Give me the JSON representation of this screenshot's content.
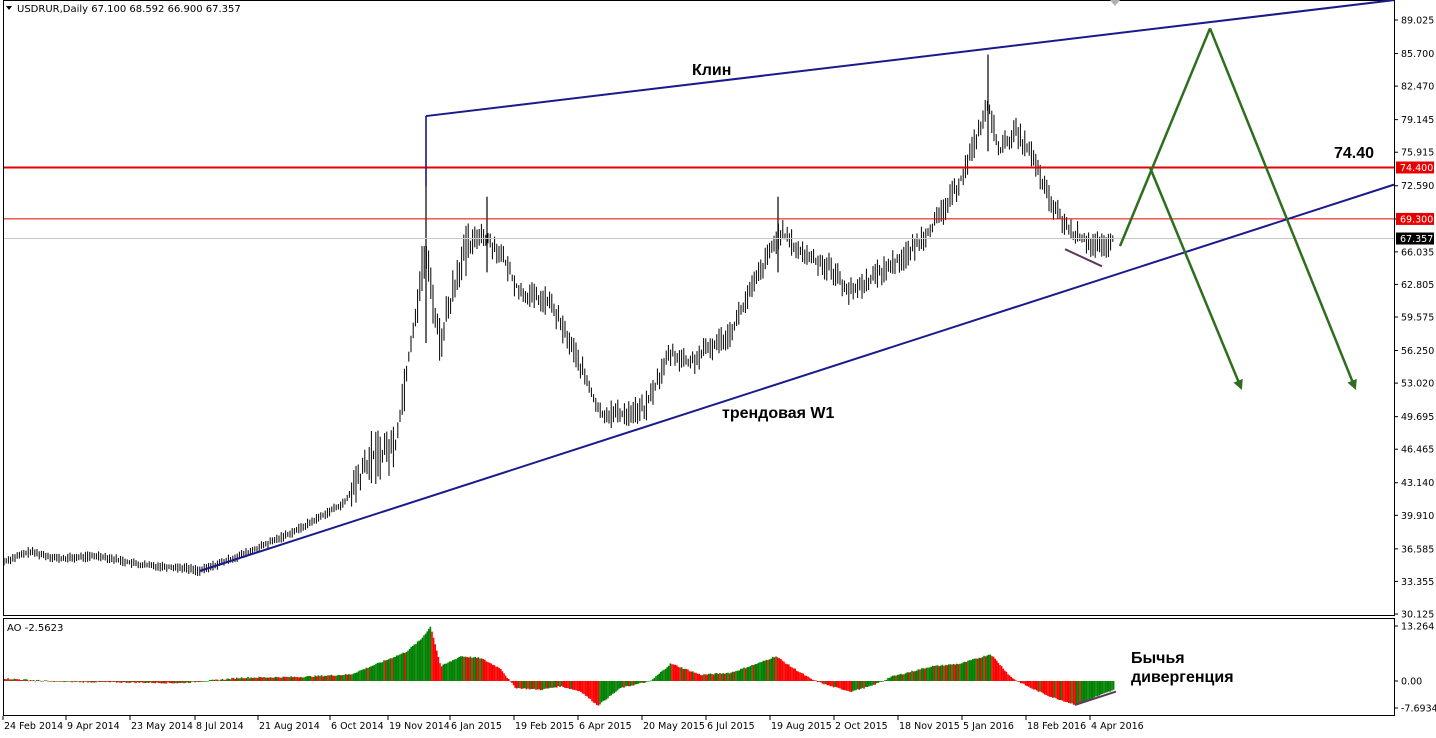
{
  "header": {
    "symbol_line": "USDRUR,Daily  67.100 68.592 66.900 67.357",
    "indicator_line": "AO -2.5623"
  },
  "colors": {
    "background": "#ffffff",
    "border": "#000000",
    "candles": "#000000",
    "trendlines": "#1a1a8c",
    "resistance_main": "#e60000",
    "resistance_minor": "#e60000",
    "current_price_line": "#c8c8c8",
    "projection_arrows": "#2e6e1e",
    "divergence": "#5a3a5a",
    "ao_up": "#008000",
    "ao_down": "#ff0000"
  },
  "annotations": {
    "wedge": "Клин",
    "trendline": "трендовая W1",
    "level": "74.40",
    "divergence_line1": "Бычья",
    "divergence_line2": "дивергенция"
  },
  "chart_data": [
    {
      "type": "candlestick",
      "title": "USDRUR,Daily",
      "ohlc_last": {
        "open": 67.1,
        "high": 68.592,
        "low": 66.9,
        "close": 67.357
      },
      "x_ticks": [
        "24 Feb 2014",
        "9 Apr 2014",
        "23 May 2014",
        "8 Jul 2014",
        "21 Aug 2014",
        "6 Oct 2014",
        "19 Nov 2014",
        "6 Jan 2015",
        "19 Feb 2015",
        "6 Apr 2015",
        "20 May 2015",
        "6 Jul 2015",
        "19 Aug 2015",
        "2 Oct 2015",
        "18 Nov 2015",
        "5 Jan 2016",
        "18 Feb 2016",
        "4 Apr 2016"
      ],
      "y_ticks": [
        89.025,
        85.7,
        82.47,
        79.145,
        75.915,
        72.59,
        69.3,
        66.035,
        62.805,
        59.575,
        56.25,
        53.02,
        49.695,
        46.465,
        43.14,
        39.91,
        36.585,
        33.355,
        30.125
      ],
      "ylim": [
        30.125,
        91.0
      ],
      "price_labels": [
        {
          "value": 74.4,
          "label": "74.400",
          "style": "red"
        },
        {
          "value": 69.3,
          "label": "69.300",
          "style": "red"
        },
        {
          "value": 67.357,
          "label": "67.357",
          "style": "black"
        }
      ],
      "key_points": [
        {
          "date": "Feb 2014",
          "price": 35.5
        },
        {
          "date": "Jul 2014",
          "price": 34.5
        },
        {
          "date": "Oct 2014",
          "price": 40.0
        },
        {
          "date": "Dec 2014",
          "price": 79.5
        },
        {
          "date": "Jan 2015",
          "price": 71.0
        },
        {
          "date": "May 2015",
          "price": 49.0
        },
        {
          "date": "Aug 2015",
          "price": 71.0
        },
        {
          "date": "Oct 2015",
          "price": 61.0
        },
        {
          "date": "Jan 2016",
          "price": 85.5
        },
        {
          "date": "Mar 2016",
          "price": 67.0
        },
        {
          "date": "Apr 2016",
          "price": 67.36
        }
      ],
      "horizontal_levels": [
        74.4,
        69.3,
        67.357
      ]
    },
    {
      "type": "bar",
      "title": "AO -2.5623",
      "last_value": -2.5623,
      "y_ticks": [
        13.264,
        0.0,
        -7.6934
      ],
      "ylim": [
        -9.5,
        15.5
      ]
    }
  ]
}
